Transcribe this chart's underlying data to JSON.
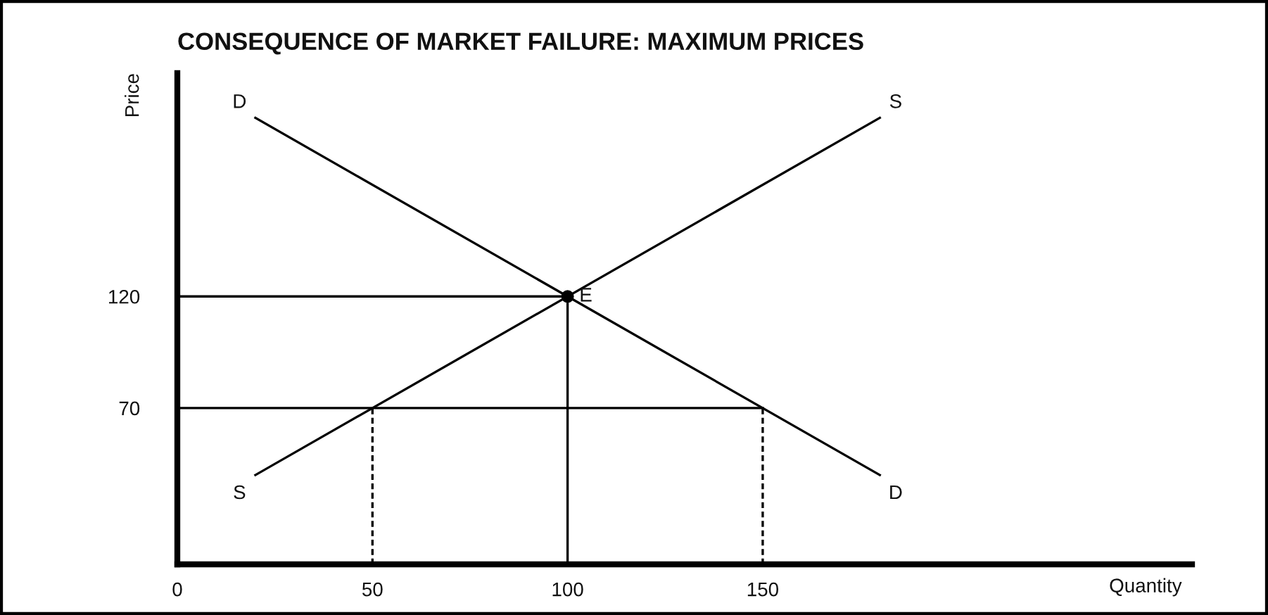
{
  "chart_data": {
    "type": "line",
    "title": "CONSEQUENCE OF MARKET FAILURE: MAXIMUM PRICES",
    "xlabel": "Quantity",
    "ylabel": "Price",
    "xlim": [
      0,
      260
    ],
    "ylim": [
      0,
      220
    ],
    "xticks": [
      0,
      50,
      100,
      150
    ],
    "yticks": [
      70,
      120
    ],
    "series": [
      {
        "name": "D",
        "color": "#000000",
        "x": [
          20,
          180
        ],
        "values": [
          200,
          40
        ]
      },
      {
        "name": "S",
        "color": "#000000",
        "x": [
          20,
          180
        ],
        "values": [
          40,
          200
        ]
      },
      {
        "color": "#000000",
        "x": [
          0,
          100
        ],
        "values": [
          120,
          120
        ]
      },
      {
        "color": "#000000",
        "x": [
          100,
          100
        ],
        "values": [
          0,
          120
        ]
      },
      {
        "color": "#000000",
        "x": [
          0,
          150
        ],
        "values": [
          70,
          70
        ]
      },
      {
        "color": "#000000",
        "x": [
          50,
          50
        ],
        "values": [
          0,
          70
        ],
        "line_style": "dashed"
      },
      {
        "color": "#000000",
        "x": [
          150,
          150
        ],
        "values": [
          0,
          70
        ],
        "line_style": "dashed"
      },
      {
        "type": "scatter",
        "color": "#000000",
        "x": [
          100
        ],
        "values": [
          120
        ],
        "marker": "circle"
      }
    ],
    "annotations": [
      {
        "text": "E",
        "x": 100,
        "y": 120
      }
    ]
  }
}
